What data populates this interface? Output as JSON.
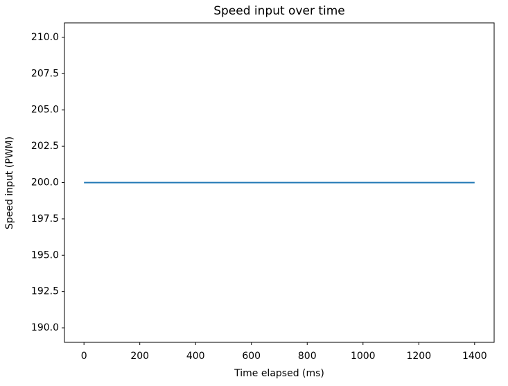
{
  "chart_data": {
    "type": "line",
    "title": "Speed input over time",
    "x_label": "Time elapsed (ms)",
    "y_label": "Speed input (PWM)",
    "x": [
      0,
      1400
    ],
    "series": [
      {
        "color": "#1f77b4",
        "values": [
          200,
          200
        ]
      }
    ],
    "xlim": [
      -70,
      1470
    ],
    "xticks": [
      0,
      200,
      400,
      600,
      800,
      1000,
      1200,
      1400
    ],
    "ylim": [
      189,
      211
    ],
    "yticks": [
      {
        "value": 190,
        "label": "190.0"
      },
      192.5,
      {
        "value": 195,
        "label": "195.0"
      },
      197.5,
      {
        "value": 200,
        "label": "200.0"
      },
      202.5,
      {
        "value": 205,
        "label": "205.0"
      },
      207.5,
      {
        "value": 210,
        "label": "210.0"
      }
    ],
    "grid": false
  }
}
